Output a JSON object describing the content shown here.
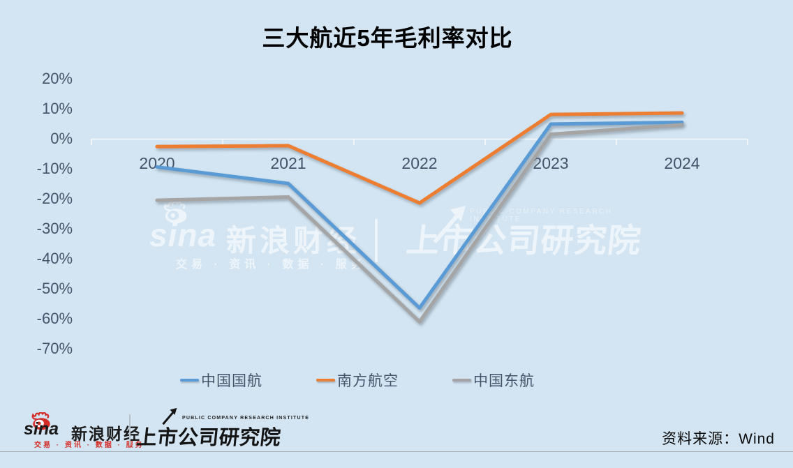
{
  "title": "三大航近5年毛利率对比",
  "chart_data": {
    "type": "line",
    "title": "三大航近5年毛利率对比",
    "categories": [
      "2020",
      "2021",
      "2022",
      "2023",
      "2024"
    ],
    "series": [
      {
        "name": "中国国航",
        "color": "#5b9bd5",
        "values": [
          -9.4,
          -14.9,
          -56.4,
          4.9,
          5.5
        ]
      },
      {
        "name": "南方航空",
        "color": "#ed7d31",
        "values": [
          -2.6,
          -2.3,
          -21.4,
          8.1,
          8.6
        ]
      },
      {
        "name": "中国东航",
        "color": "#a5a5a5",
        "values": [
          -20.5,
          -19.4,
          -61.0,
          1.5,
          4.7
        ]
      }
    ],
    "unit": "%",
    "ylim": [
      -75,
      25
    ],
    "y_ticks": [
      20,
      10,
      0,
      -10,
      -20,
      -30,
      -40,
      -50,
      -60,
      -70
    ],
    "y_tick_labels": [
      "20%",
      "10%",
      "0%",
      "-10%",
      "-20%",
      "-30%",
      "-40%",
      "-50%",
      "-60%",
      "-70%"
    ],
    "grid": false,
    "legend_position": "bottom",
    "background_color": "#d3e5f2",
    "axis_text_color": "#44546a"
  },
  "watermark": {
    "sina_text": "sina",
    "brand": "新浪财经",
    "tagline": "交易 · 资讯 · 数据 · 服务",
    "institute_en": "PUBLIC COMPANY RESEARCH INSTITUTE",
    "institute": "上市公司研究院"
  },
  "footer": {
    "sina_text": "sina",
    "sina_brand": "新浪财经",
    "sina_tagline": "交易 · 资讯 · 数据 · 服务",
    "institute_en": "PUBLIC COMPANY RESEARCH INSTITUTE",
    "institute": "上市公司研究院",
    "source": "资料来源：Wind",
    "sina_red": "#d42c26"
  }
}
